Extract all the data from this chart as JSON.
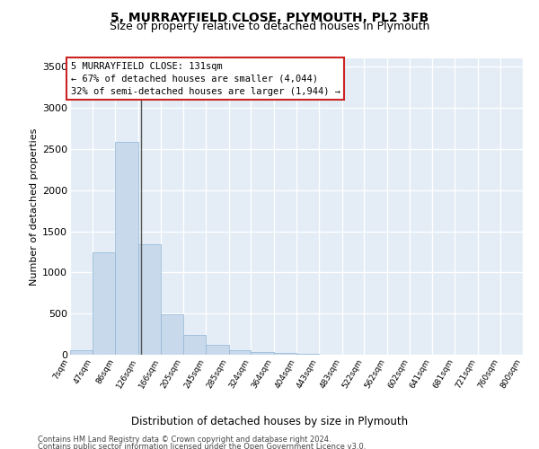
{
  "title": "5, MURRAYFIELD CLOSE, PLYMOUTH, PL2 3FB",
  "subtitle": "Size of property relative to detached houses in Plymouth",
  "xlabel": "Distribution of detached houses by size in Plymouth",
  "ylabel": "Number of detached properties",
  "bar_color": "#c8d9ec",
  "bar_edge_color": "#8fb5d5",
  "background_color": "#e4edf6",
  "annotation_box_edge_color": "#cc2222",
  "annotation_text": "5 MURRAYFIELD CLOSE: 131sqm\n← 67% of detached houses are smaller (4,044)\n32% of semi-detached houses are larger (1,944) →",
  "footer_line1": "Contains HM Land Registry data © Crown copyright and database right 2024.",
  "footer_line2": "Contains public sector information licensed under the Open Government Licence v3.0.",
  "bin_edges": [
    7,
    47,
    86,
    126,
    166,
    205,
    245,
    285,
    324,
    364,
    404,
    443,
    483,
    522,
    562,
    602,
    641,
    681,
    721,
    760,
    800
  ],
  "bin_labels": [
    "7sqm",
    "47sqm",
    "86sqm",
    "126sqm",
    "166sqm",
    "205sqm",
    "245sqm",
    "285sqm",
    "324sqm",
    "364sqm",
    "404sqm",
    "443sqm",
    "483sqm",
    "522sqm",
    "562sqm",
    "602sqm",
    "641sqm",
    "681sqm",
    "721sqm",
    "760sqm",
    "800sqm"
  ],
  "bar_heights": [
    50,
    1240,
    2590,
    1340,
    490,
    235,
    115,
    55,
    35,
    20,
    10,
    5,
    5,
    0,
    0,
    0,
    0,
    0,
    0,
    0
  ],
  "ylim": [
    0,
    3600
  ],
  "yticks": [
    0,
    500,
    1000,
    1500,
    2000,
    2500,
    3000,
    3500
  ],
  "property_size": 131,
  "vline_color": "#555555"
}
